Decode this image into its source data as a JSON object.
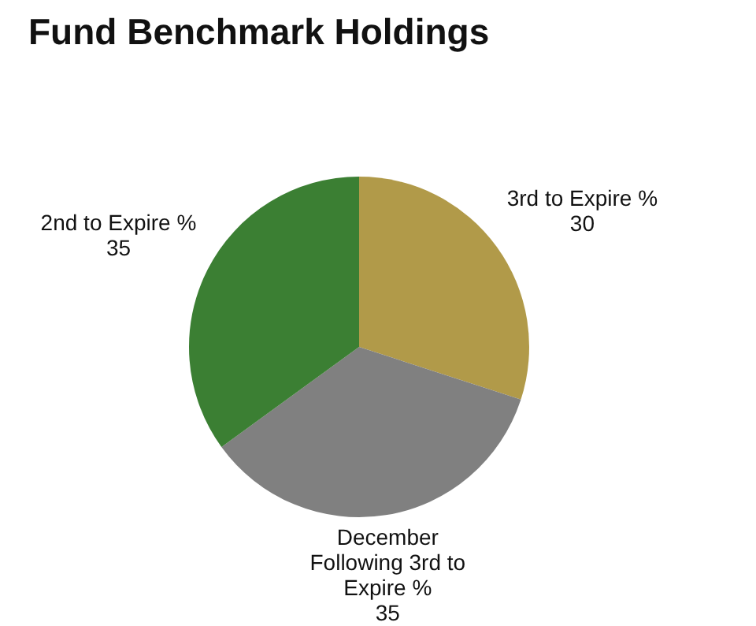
{
  "chart_data": {
    "type": "pie",
    "title": "Fund Benchmark Holdings",
    "categories": [
      "3rd to Expire %",
      "December Following 3rd to Expire %",
      "2nd to Expire %"
    ],
    "values": [
      30,
      35,
      35
    ],
    "colors": [
      "#b19a49",
      "#808080",
      "#3b7f33"
    ],
    "data_labels": true,
    "legend": false
  }
}
